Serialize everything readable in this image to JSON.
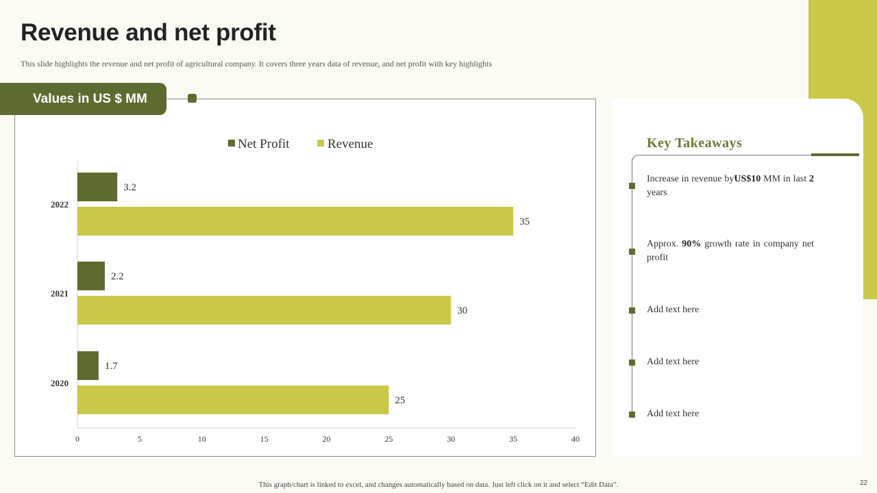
{
  "page": {
    "title": "Revenue and net profit",
    "subtitle": "This slide highlights the revenue and net profit of agricultural company. It covers three years data of revenue, and net profit with key highlights",
    "values_label": "Values in US $ MM",
    "footer_note": "This graph/chart is linked to excel,  and changes automatically based on data. Just left click on it and select “Edit Data”.",
    "page_number": "22"
  },
  "colors": {
    "net_profit": "#5e6b30",
    "revenue": "#c9c849"
  },
  "chart_data": {
    "type": "bar",
    "orientation": "horizontal",
    "categories": [
      "2022",
      "2021",
      "2020"
    ],
    "series": [
      {
        "name": "Net Profit",
        "values": [
          3.2,
          2.2,
          1.7
        ]
      },
      {
        "name": "Revenue",
        "values": [
          35,
          30,
          25
        ]
      }
    ],
    "xlim": [
      0,
      40
    ],
    "xticks": [
      0,
      5,
      10,
      15,
      20,
      25,
      30,
      35,
      40
    ],
    "legend": "top-center",
    "title": "",
    "xlabel": "",
    "ylabel": ""
  },
  "takeaways": {
    "title": "Key  Takeaways",
    "items": [
      {
        "pre": "Increase  in  revenue  by",
        "bold1": "US$10",
        "mid": " MM in last ",
        "bold2": "2",
        "post": " years"
      },
      {
        "pre": "Approx.  ",
        "bold1": "90%",
        "mid": " growth rate in company net profit",
        "bold2": "",
        "post": ""
      },
      {
        "pre": "Add text  here",
        "bold1": "",
        "mid": "",
        "bold2": "",
        "post": ""
      },
      {
        "pre": "Add text  here",
        "bold1": "",
        "mid": "",
        "bold2": "",
        "post": ""
      },
      {
        "pre": "Add text  here",
        "bold1": "",
        "mid": "",
        "bold2": "",
        "post": ""
      }
    ]
  }
}
